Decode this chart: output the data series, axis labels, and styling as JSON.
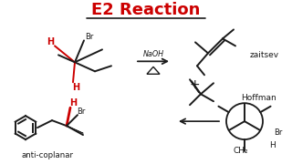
{
  "title": "E2 Reaction",
  "title_color": "#cc0000",
  "title_fontsize": 13,
  "bg_color": "#ffffff",
  "line_color": "#1a1a1a",
  "red_color": "#cc0000",
  "label_zaitsev": "zaitsev",
  "label_hoffman": "Hoffman",
  "label_anti": "anti-coplanar",
  "label_ch2": "CH₂",
  "label_naoh": "NaOH",
  "label_br": "Br",
  "label_h": "H",
  "label_plus": "+"
}
